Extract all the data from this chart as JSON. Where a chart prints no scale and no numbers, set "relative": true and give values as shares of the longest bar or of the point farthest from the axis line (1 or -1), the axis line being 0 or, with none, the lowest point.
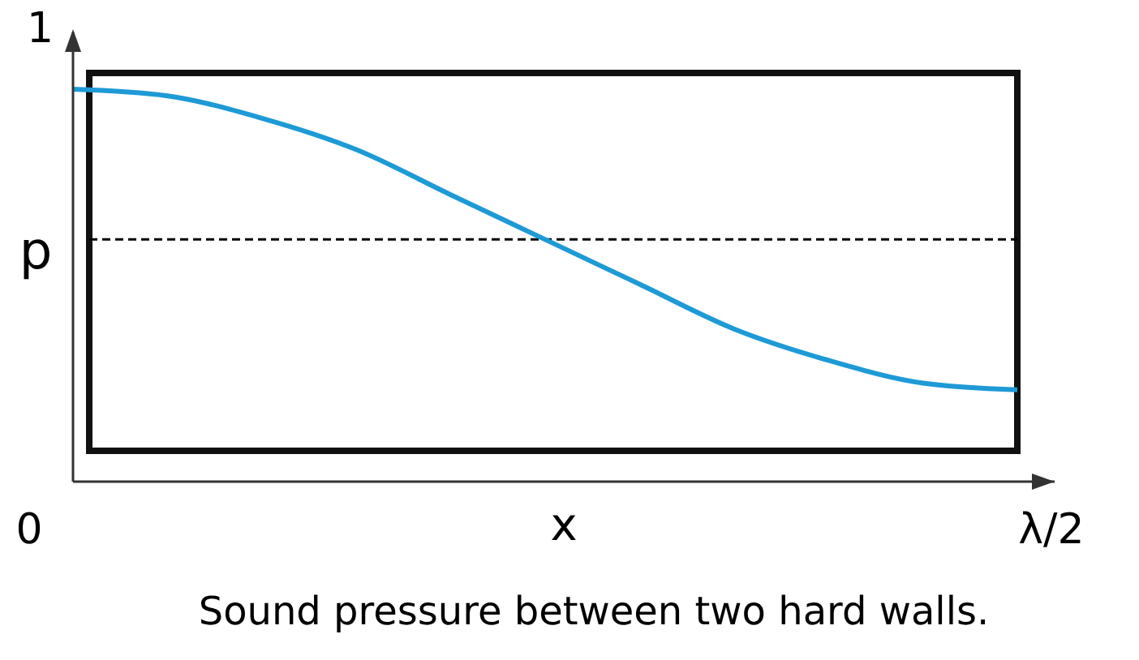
{
  "chart_data": {
    "type": "line",
    "xlabel": "x",
    "ylabel": "p",
    "relative": true,
    "categories": [
      null,
      null,
      null,
      null,
      null,
      null,
      null,
      null,
      null,
      null,
      null
    ],
    "series": [
      {
        "color": "#1e9ad6",
        "values": [
          1,
          0.983,
          0.926,
          0.846,
          0.731,
          0.617,
          0.503,
          0.389,
          0.309,
          0.251,
          0.234
        ]
      }
    ],
    "ref_lines": [
      {
        "axis": "y",
        "value": 0.617,
        "color": "#000000",
        "line_style": "dashed"
      }
    ],
    "grid": false,
    "marker": "none",
    "line_style": "solid",
    "annotations": [
      "1",
      "0",
      "λ/2",
      "Sound pressure between two hard walls."
    ]
  }
}
